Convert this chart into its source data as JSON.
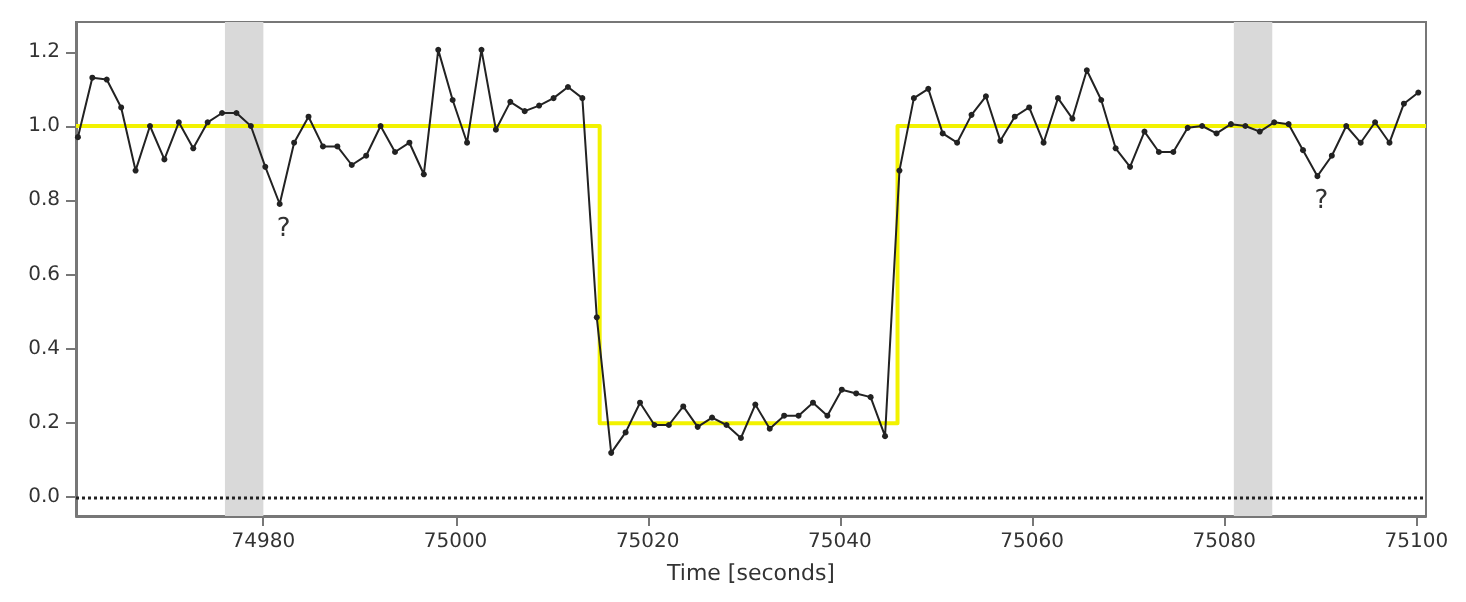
{
  "chart_data": {
    "type": "line",
    "xlabel": "Time [seconds]",
    "xlim": [
      74960.5,
      75101
    ],
    "xticks": [
      74980,
      75000,
      75020,
      75040,
      75060,
      75080,
      75100
    ],
    "ylim": [
      -0.05,
      1.28
    ],
    "yticks": [
      {
        "value": 0,
        "label": "0.0"
      },
      0.2,
      0.4,
      0.6,
      0.8,
      {
        "value": 1,
        "label": "1.0"
      },
      1.2
    ],
    "grid": false,
    "marker": "circle",
    "line_style": "solid",
    "series": [
      {
        "type": "line",
        "color": "#f2f200",
        "marker": "none",
        "x": [
          74960.5,
          75015,
          75015,
          75046,
          75046,
          75101
        ],
        "values": [
          1,
          1,
          0.2,
          0.2,
          1,
          1
        ]
      },
      {
        "color": "#222222",
        "x": [
          74960.7,
          74962.2,
          74963.7,
          74965.2,
          74966.7,
          74968.2,
          74969.7,
          74971.2,
          74972.7,
          74974.2,
          74975.7,
          74977.2,
          74978.7,
          74980.2,
          74981.7,
          74983.2,
          74984.7,
          74986.2,
          74987.7,
          74989.2,
          74990.7,
          74992.2,
          74993.7,
          74995.2,
          74996.7,
          74998.2,
          74999.7,
          75001.2,
          75002.7,
          75004.2,
          75005.7,
          75007.2,
          75008.7,
          75010.2,
          75011.7,
          75013.2,
          75014.7,
          75016.2,
          75017.7,
          75019.2,
          75020.7,
          75022.2,
          75023.7,
          75025.2,
          75026.7,
          75028.2,
          75029.7,
          75031.2,
          75032.7,
          75034.2,
          75035.7,
          75037.2,
          75038.7,
          75040.2,
          75041.7,
          75043.2,
          75044.7,
          75046.2,
          75047.7,
          75049.2,
          75050.7,
          75052.2,
          75053.7,
          75055.2,
          75056.7,
          75058.2,
          75059.7,
          75061.2,
          75062.7,
          75064.2,
          75065.7,
          75067.2,
          75068.7,
          75070.2,
          75071.7,
          75073.2,
          75074.7,
          75076.2,
          75077.7,
          75079.2,
          75080.7,
          75082.2,
          75083.7,
          75085.2,
          75086.7,
          75088.2,
          75089.7,
          75091.2,
          75092.7,
          75094.2,
          75095.7,
          75097.2,
          75098.7,
          75100.2
        ],
        "values": [
          0.97,
          1.13,
          1.125,
          1.05,
          0.88,
          1.0,
          0.91,
          1.01,
          0.94,
          1.01,
          1.035,
          1.035,
          1.0,
          0.89,
          0.79,
          0.955,
          1.025,
          0.945,
          0.945,
          0.895,
          0.92,
          1.0,
          0.93,
          0.955,
          0.87,
          1.205,
          1.07,
          0.955,
          1.205,
          0.99,
          1.065,
          1.04,
          1.055,
          1.075,
          1.105,
          1.075,
          0.485,
          0.12,
          0.175,
          0.255,
          0.195,
          0.195,
          0.245,
          0.19,
          0.215,
          0.195,
          0.16,
          0.25,
          0.185,
          0.22,
          0.22,
          0.255,
          0.22,
          0.29,
          0.28,
          0.27,
          0.165,
          0.88,
          1.075,
          1.1,
          0.98,
          0.955,
          1.03,
          1.08,
          0.96,
          1.025,
          1.05,
          0.955,
          1.075,
          1.02,
          1.15,
          1.07,
          0.94,
          0.89,
          0.985,
          0.93,
          0.93,
          0.995,
          1.0,
          0.98,
          1.005,
          1.0,
          0.985,
          1.01,
          1.005,
          0.935,
          0.865,
          0.92,
          1.0,
          0.955,
          1.01,
          0.955,
          1.06,
          1.09
        ]
      }
    ],
    "ref_lines": [
      {
        "axis": "y",
        "value": 0,
        "color": "#222222",
        "line_style": "dotted"
      }
    ],
    "bands": [
      {
        "axis": "x",
        "from": 74976,
        "to": 74980,
        "color": "#d9d9d9"
      },
      {
        "axis": "x",
        "from": 75081,
        "to": 75085,
        "color": "#d9d9d9"
      }
    ],
    "annotations": [
      {
        "text": "?",
        "x": 74981.7,
        "y": 0.79
      },
      {
        "text": "?",
        "x": 75089.7,
        "y": 0.865
      }
    ]
  }
}
